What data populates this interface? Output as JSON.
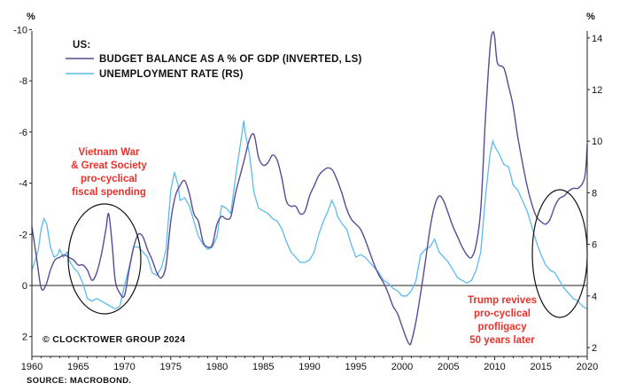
{
  "chart_data": {
    "type": "line",
    "title": "",
    "legend_title": "US:",
    "left_unit": "%",
    "right_unit": "%",
    "xlim": [
      1960,
      2020
    ],
    "x_ticks": [
      1960,
      1965,
      1970,
      1975,
      1980,
      1985,
      1990,
      1995,
      2000,
      2005,
      2010,
      2015,
      2020
    ],
    "left_axis": {
      "inverted": true,
      "ylim": [
        -10,
        2.5
      ],
      "ticks": [
        -10,
        -8,
        -6,
        -4,
        -2,
        0,
        2
      ]
    },
    "right_axis": {
      "ylim": [
        2,
        14
      ],
      "ticks": [
        2,
        4,
        6,
        8,
        10,
        12,
        14
      ]
    },
    "colors": {
      "budget": "#5b4a93",
      "unemployment": "#5bbcec",
      "annotation": "#e8322c",
      "axis": "#222222"
    },
    "series": [
      {
        "name": "BUDGET BALANCE AS A % OF GDP (INVERTED, LS)",
        "axis": "left",
        "color": "#5b4a93",
        "points": [
          [
            1960,
            -2.3
          ],
          [
            1960.5,
            -1.1
          ],
          [
            1961,
            0.1
          ],
          [
            1961.5,
            0.0
          ],
          [
            1962,
            -0.6
          ],
          [
            1962.5,
            -1.0
          ],
          [
            1963,
            -1.1
          ],
          [
            1963.5,
            -1.2
          ],
          [
            1964,
            -1.1
          ],
          [
            1964.5,
            -1.0
          ],
          [
            1965,
            -0.8
          ],
          [
            1965.5,
            -0.8
          ],
          [
            1966,
            -0.6
          ],
          [
            1966.5,
            -0.2
          ],
          [
            1967,
            -0.5
          ],
          [
            1967.5,
            -1.2
          ],
          [
            1968,
            -2.2
          ],
          [
            1968.3,
            -2.8
          ],
          [
            1968.7,
            -1.5
          ],
          [
            1969,
            -0.2
          ],
          [
            1969.5,
            0.3
          ],
          [
            1970,
            0.4
          ],
          [
            1970.5,
            -0.6
          ],
          [
            1971,
            -1.5
          ],
          [
            1971.5,
            -2.0
          ],
          [
            1972,
            -1.9
          ],
          [
            1972.5,
            -1.4
          ],
          [
            1973,
            -1.0
          ],
          [
            1973.5,
            -0.5
          ],
          [
            1974,
            -0.3
          ],
          [
            1974.5,
            -0.8
          ],
          [
            1975,
            -2.5
          ],
          [
            1975.5,
            -3.5
          ],
          [
            1976,
            -3.9
          ],
          [
            1976.5,
            -4.1
          ],
          [
            1977,
            -3.6
          ],
          [
            1977.5,
            -2.8
          ],
          [
            1978,
            -2.5
          ],
          [
            1978.5,
            -1.7
          ],
          [
            1979,
            -1.5
          ],
          [
            1979.5,
            -1.6
          ],
          [
            1980,
            -2.4
          ],
          [
            1980.5,
            -2.7
          ],
          [
            1981,
            -2.6
          ],
          [
            1981.5,
            -2.7
          ],
          [
            1982,
            -3.6
          ],
          [
            1982.5,
            -4.3
          ],
          [
            1983,
            -5.0
          ],
          [
            1983.5,
            -5.7
          ],
          [
            1984,
            -5.9
          ],
          [
            1984.5,
            -5.0
          ],
          [
            1985,
            -4.7
          ],
          [
            1985.5,
            -4.8
          ],
          [
            1986,
            -5.1
          ],
          [
            1986.5,
            -4.9
          ],
          [
            1987,
            -4.2
          ],
          [
            1987.5,
            -3.3
          ],
          [
            1988,
            -3.1
          ],
          [
            1988.5,
            -3.1
          ],
          [
            1989,
            -2.8
          ],
          [
            1989.5,
            -2.9
          ],
          [
            1990,
            -3.5
          ],
          [
            1990.5,
            -3.9
          ],
          [
            1991,
            -4.3
          ],
          [
            1991.5,
            -4.5
          ],
          [
            1992,
            -4.6
          ],
          [
            1992.5,
            -4.5
          ],
          [
            1993,
            -4.1
          ],
          [
            1993.5,
            -3.6
          ],
          [
            1994,
            -3.0
          ],
          [
            1994.5,
            -2.6
          ],
          [
            1995,
            -2.4
          ],
          [
            1995.5,
            -2.2
          ],
          [
            1996,
            -1.8
          ],
          [
            1996.5,
            -1.3
          ],
          [
            1997,
            -0.8
          ],
          [
            1997.5,
            -0.4
          ],
          [
            1998,
            -0.1
          ],
          [
            1998.5,
            0.3
          ],
          [
            1999,
            0.8
          ],
          [
            1999.5,
            1.1
          ],
          [
            2000,
            1.6
          ],
          [
            2000.5,
            2.1
          ],
          [
            2000.8,
            2.3
          ],
          [
            2001,
            2.2
          ],
          [
            2001.5,
            1.4
          ],
          [
            2002,
            0.3
          ],
          [
            2002.5,
            -0.9
          ],
          [
            2003,
            -2.2
          ],
          [
            2003.5,
            -3.1
          ],
          [
            2004,
            -3.5
          ],
          [
            2004.5,
            -3.3
          ],
          [
            2005,
            -2.8
          ],
          [
            2005.5,
            -2.3
          ],
          [
            2006,
            -1.9
          ],
          [
            2006.5,
            -1.5
          ],
          [
            2007,
            -1.2
          ],
          [
            2007.5,
            -1.1
          ],
          [
            2008,
            -1.6
          ],
          [
            2008.5,
            -3.0
          ],
          [
            2009,
            -6.5
          ],
          [
            2009.5,
            -9.3
          ],
          [
            2009.8,
            -9.9
          ],
          [
            2010,
            -9.7
          ],
          [
            2010.3,
            -8.7
          ],
          [
            2011,
            -8.5
          ],
          [
            2011.5,
            -7.8
          ],
          [
            2012,
            -7.0
          ],
          [
            2012.5,
            -5.8
          ],
          [
            2013,
            -4.8
          ],
          [
            2013.5,
            -3.9
          ],
          [
            2014,
            -3.2
          ],
          [
            2014.5,
            -2.7
          ],
          [
            2015,
            -2.5
          ],
          [
            2015.5,
            -2.4
          ],
          [
            2016,
            -2.6
          ],
          [
            2016.5,
            -3.1
          ],
          [
            2017,
            -3.4
          ],
          [
            2017.5,
            -3.5
          ],
          [
            2018,
            -3.7
          ],
          [
            2018.5,
            -3.8
          ],
          [
            2019,
            -3.8
          ],
          [
            2019.5,
            -4.0
          ],
          [
            2019.8,
            -4.4
          ],
          [
            2020,
            -5.5
          ]
        ]
      },
      {
        "name": "UNEMPLOYMENT RATE (RS)",
        "axis": "right",
        "color": "#5bbcec",
        "points": [
          [
            1960,
            5.0
          ],
          [
            1960.3,
            5.3
          ],
          [
            1960.7,
            5.8
          ],
          [
            1961,
            6.6
          ],
          [
            1961.3,
            7.0
          ],
          [
            1961.6,
            6.8
          ],
          [
            1962,
            5.9
          ],
          [
            1962.4,
            5.5
          ],
          [
            1962.8,
            5.6
          ],
          [
            1963,
            5.8
          ],
          [
            1963.4,
            5.5
          ],
          [
            1963.8,
            5.7
          ],
          [
            1964,
            5.4
          ],
          [
            1964.5,
            5.1
          ],
          [
            1965,
            4.9
          ],
          [
            1965.5,
            4.5
          ],
          [
            1966,
            3.9
          ],
          [
            1966.5,
            3.8
          ],
          [
            1967,
            3.9
          ],
          [
            1967.5,
            3.8
          ],
          [
            1968,
            3.7
          ],
          [
            1968.5,
            3.6
          ],
          [
            1969,
            3.5
          ],
          [
            1969.5,
            3.6
          ],
          [
            1970,
            4.4
          ],
          [
            1970.5,
            5.1
          ],
          [
            1971,
            5.9
          ],
          [
            1971.5,
            5.9
          ],
          [
            1972,
            5.7
          ],
          [
            1972.5,
            5.5
          ],
          [
            1973,
            4.9
          ],
          [
            1973.5,
            4.8
          ],
          [
            1974,
            5.1
          ],
          [
            1974.5,
            5.8
          ],
          [
            1975,
            8.1
          ],
          [
            1975.4,
            8.8
          ],
          [
            1975.8,
            8.3
          ],
          [
            1976,
            7.7
          ],
          [
            1976.5,
            7.8
          ],
          [
            1977,
            7.5
          ],
          [
            1977.5,
            6.9
          ],
          [
            1978,
            6.3
          ],
          [
            1978.5,
            6.0
          ],
          [
            1979,
            5.8
          ],
          [
            1979.5,
            5.9
          ],
          [
            1980,
            6.3
          ],
          [
            1980.5,
            7.5
          ],
          [
            1981,
            7.4
          ],
          [
            1981.5,
            7.2
          ],
          [
            1982,
            8.6
          ],
          [
            1982.5,
            9.8
          ],
          [
            1982.9,
            10.8
          ],
          [
            1983,
            10.4
          ],
          [
            1983.5,
            9.5
          ],
          [
            1984,
            8.0
          ],
          [
            1984.5,
            7.4
          ],
          [
            1985,
            7.3
          ],
          [
            1985.5,
            7.2
          ],
          [
            1986,
            7.0
          ],
          [
            1986.5,
            6.9
          ],
          [
            1987,
            6.6
          ],
          [
            1987.5,
            6.1
          ],
          [
            1988,
            5.7
          ],
          [
            1988.5,
            5.5
          ],
          [
            1989,
            5.3
          ],
          [
            1989.5,
            5.3
          ],
          [
            1990,
            5.4
          ],
          [
            1990.5,
            5.7
          ],
          [
            1991,
            6.4
          ],
          [
            1991.5,
            6.9
          ],
          [
            1992,
            7.3
          ],
          [
            1992.4,
            7.7
          ],
          [
            1992.8,
            7.4
          ],
          [
            1993,
            7.1
          ],
          [
            1993.5,
            6.8
          ],
          [
            1994,
            6.6
          ],
          [
            1994.5,
            6.0
          ],
          [
            1995,
            5.5
          ],
          [
            1995.5,
            5.6
          ],
          [
            1996,
            5.5
          ],
          [
            1996.5,
            5.3
          ],
          [
            1997,
            5.1
          ],
          [
            1997.5,
            4.9
          ],
          [
            1998,
            4.6
          ],
          [
            1998.5,
            4.5
          ],
          [
            1999,
            4.3
          ],
          [
            1999.5,
            4.2
          ],
          [
            2000,
            4.0
          ],
          [
            2000.5,
            4.0
          ],
          [
            2001,
            4.2
          ],
          [
            2001.5,
            4.6
          ],
          [
            2002,
            5.6
          ],
          [
            2002.5,
            5.8
          ],
          [
            2003,
            5.9
          ],
          [
            2003.5,
            6.2
          ],
          [
            2004,
            5.7
          ],
          [
            2004.5,
            5.5
          ],
          [
            2005,
            5.3
          ],
          [
            2005.5,
            5.0
          ],
          [
            2006,
            4.7
          ],
          [
            2006.5,
            4.6
          ],
          [
            2007,
            4.5
          ],
          [
            2007.5,
            4.6
          ],
          [
            2008,
            5.0
          ],
          [
            2008.5,
            5.7
          ],
          [
            2009,
            7.8
          ],
          [
            2009.5,
            9.5
          ],
          [
            2009.8,
            10.0
          ],
          [
            2010,
            9.8
          ],
          [
            2010.5,
            9.5
          ],
          [
            2011,
            9.1
          ],
          [
            2011.5,
            9.0
          ],
          [
            2012,
            8.3
          ],
          [
            2012.5,
            8.1
          ],
          [
            2013,
            7.7
          ],
          [
            2013.5,
            7.3
          ],
          [
            2014,
            6.7
          ],
          [
            2014.5,
            6.1
          ],
          [
            2015,
            5.6
          ],
          [
            2015.5,
            5.2
          ],
          [
            2016,
            5.0
          ],
          [
            2016.5,
            4.9
          ],
          [
            2017,
            4.6
          ],
          [
            2017.5,
            4.3
          ],
          [
            2018,
            4.1
          ],
          [
            2018.5,
            3.9
          ],
          [
            2019,
            3.8
          ],
          [
            2019.5,
            3.6
          ],
          [
            2020,
            3.5
          ]
        ]
      }
    ],
    "annotations": [
      {
        "lines": [
          "Vietnam War",
          "& Great Society",
          "pro-cyclical",
          "fiscal spending"
        ]
      },
      {
        "lines": [
          "Trump revives",
          "pro-cyclical",
          "profligacy",
          "50 years later"
        ]
      }
    ],
    "copyright": "© CLOCKTOWER GROUP 2024",
    "source": "SOURCE: MACROBOND."
  }
}
